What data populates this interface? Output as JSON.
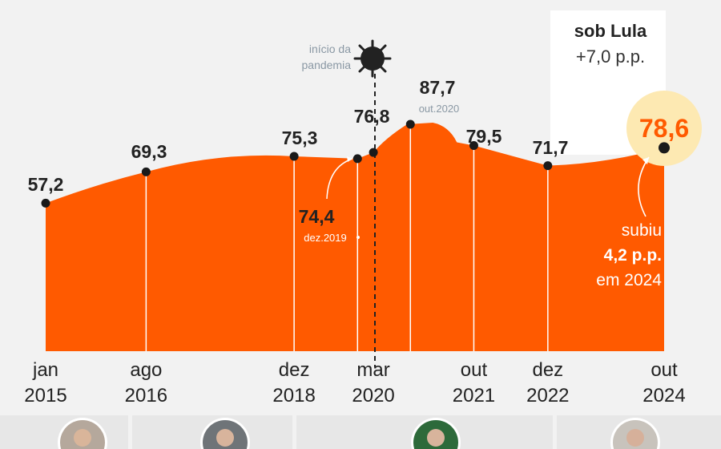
{
  "colors": {
    "area": "#ff5a00",
    "highlight": "#fde9b2",
    "highlight_text": "#ff5a00",
    "background": "#f2f2f2",
    "text": "#222222",
    "muted": "#8a98a4"
  },
  "chart_data": {
    "type": "area",
    "x": [
      "2015-01",
      "2016-08",
      "2018-12",
      "2019-12",
      "2020-03",
      "2020-10",
      "2021-10",
      "2022-12",
      "2024-10"
    ],
    "values": [
      57.2,
      69.3,
      75.3,
      74.4,
      76.8,
      87.7,
      79.5,
      71.7,
      78.6
    ],
    "value_labels": [
      "57,2",
      "69,3",
      "75,3",
      "74,4",
      "76,8",
      "87,7",
      "79,5",
      "71,7",
      "78,6"
    ],
    "value_sublabels": {
      "74,4": "dez.2019",
      "87,7": "out.2020"
    },
    "ticks": [
      {
        "month": "jan",
        "year": "2015"
      },
      {
        "month": "ago",
        "year": "2016"
      },
      {
        "month": "dez",
        "year": "2018"
      },
      {
        "month": "mar",
        "year": "2020"
      },
      {
        "month": "out",
        "year": "2021"
      },
      {
        "month": "dez",
        "year": "2022"
      },
      {
        "month": "out",
        "year": "2024"
      }
    ],
    "ylim": [
      0,
      100
    ],
    "grid": false,
    "legend": "none"
  },
  "annotations": {
    "pandemic_line1": "início da",
    "pandemic_line2": "pandemia",
    "lula_title": "sob Lula",
    "lula_change": "+7,0 p.p.",
    "rise_line1": "subiu",
    "rise_line2": "4,2 p.p.",
    "rise_line3": "em 2024"
  },
  "icons": {
    "virus": "virus-icon",
    "presidents": [
      "president-photo-dilma",
      "president-photo-temer",
      "president-photo-bolsonaro",
      "president-photo-lula"
    ]
  }
}
